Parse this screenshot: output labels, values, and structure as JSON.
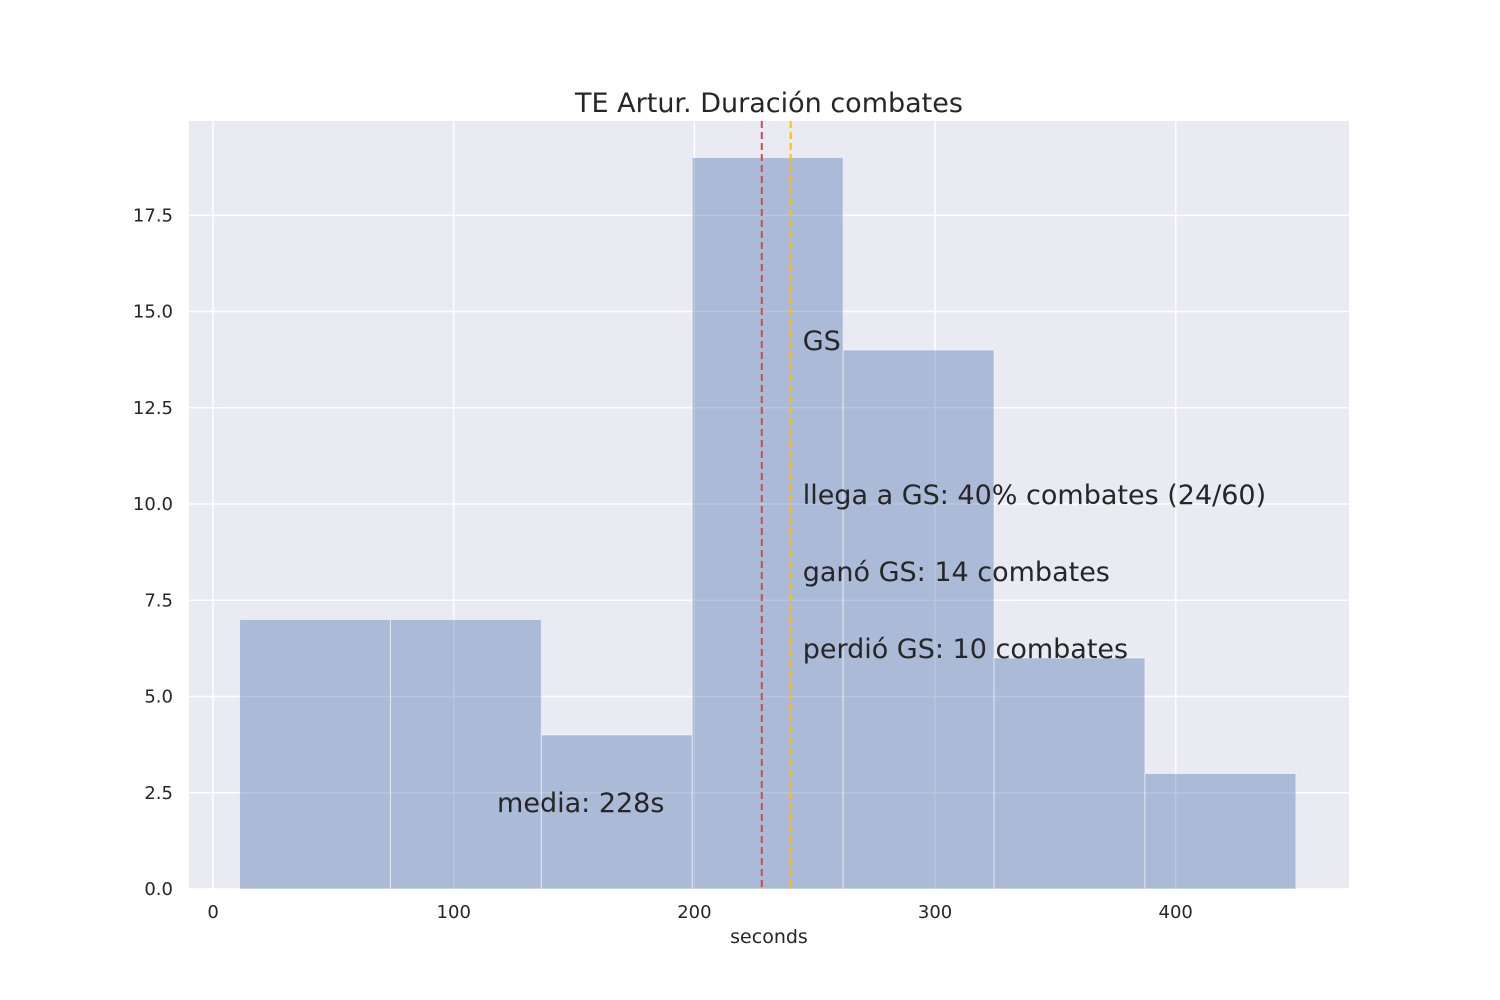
{
  "chart_data": {
    "type": "bar",
    "title": "TE Artur. Duración combates",
    "xlabel": "seconds",
    "ylabel": "",
    "xlim": [
      -10,
      472
    ],
    "ylim": [
      0,
      19.95
    ],
    "grid": true,
    "x_ticks": [
      0,
      100,
      200,
      300,
      400
    ],
    "y_ticks": [
      0.0,
      2.5,
      5.0,
      7.5,
      10.0,
      12.5,
      15.0,
      17.5
    ],
    "x_tick_labels": [
      "0",
      "100",
      "200",
      "300",
      "400"
    ],
    "y_tick_labels": [
      "0.0",
      "2.5",
      "5.0",
      "7.5",
      "10.0",
      "12.5",
      "15.0",
      "17.5"
    ],
    "bins": [
      {
        "start": 11,
        "end": 73.7,
        "count": 7
      },
      {
        "start": 73.7,
        "end": 136.4,
        "count": 7
      },
      {
        "start": 136.4,
        "end": 199.1,
        "count": 4
      },
      {
        "start": 199.1,
        "end": 261.8,
        "count": 19
      },
      {
        "start": 261.8,
        "end": 324.5,
        "count": 14
      },
      {
        "start": 324.5,
        "end": 387.2,
        "count": 6
      },
      {
        "start": 387.2,
        "end": 449.9,
        "count": 3
      }
    ],
    "vlines": [
      {
        "x": 228,
        "color": "#c44e52"
      },
      {
        "x": 240,
        "color": "#ffc000"
      }
    ],
    "annotations": [
      {
        "text": "media: 228s",
        "x": 118,
        "y": 2.0,
        "color": "#c44e52"
      },
      {
        "text": "GS",
        "x": 245,
        "y": 14.0,
        "color": "#262626"
      },
      {
        "text": "llega a GS: 40% combates (24/60)",
        "x": 245,
        "y": 10.0,
        "color": "#262626"
      },
      {
        "text": "ganó GS: 14 combates",
        "x": 245,
        "y": 8.0,
        "color": "#262626"
      },
      {
        "text": "perdió GS: 10 combates",
        "x": 245,
        "y": 6.0,
        "color": "#262626"
      }
    ],
    "colors": {
      "bar": "#4c72b0",
      "background": "#eaeaf2",
      "grid": "#ffffff"
    }
  }
}
